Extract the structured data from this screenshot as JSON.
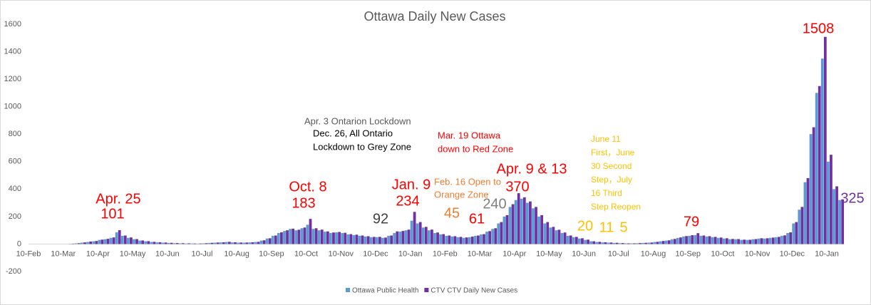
{
  "chart_data": {
    "type": "bar",
    "title": "Ottawa Daily New Cases",
    "categories": [
      "10-Feb",
      null,
      null,
      null,
      null,
      null,
      "10-Mar",
      null,
      null,
      null,
      null,
      null,
      "10-Apr",
      null,
      null,
      null,
      null,
      null,
      "10-May",
      null,
      null,
      null,
      null,
      null,
      "10-Jun",
      null,
      null,
      null,
      null,
      null,
      "10-Jul",
      null,
      null,
      null,
      null,
      null,
      "10-Aug",
      null,
      null,
      null,
      null,
      null,
      "10-Sep",
      null,
      null,
      null,
      null,
      null,
      "10-Oct",
      null,
      null,
      null,
      null,
      null,
      "10-Nov",
      null,
      null,
      null,
      null,
      null,
      "10-Dec",
      null,
      null,
      null,
      null,
      null,
      "10-Jan",
      null,
      null,
      null,
      null,
      null,
      "10-Feb",
      null,
      null,
      null,
      null,
      null,
      "10-Mar",
      null,
      null,
      null,
      null,
      null,
      "10-Apr",
      null,
      null,
      null,
      null,
      null,
      "10-May",
      null,
      null,
      null,
      null,
      null,
      "10-Jun",
      null,
      null,
      null,
      null,
      null,
      "10-Jul",
      null,
      null,
      null,
      null,
      null,
      "10-Aug",
      null,
      null,
      null,
      null,
      null,
      "10-Sep",
      null,
      null,
      null,
      null,
      null,
      "10-Oct",
      null,
      null,
      null,
      null,
      null,
      "10-Nov",
      null,
      null,
      null,
      null,
      null,
      "10-Dec",
      null,
      null,
      null,
      null,
      null,
      "10-Jan",
      null,
      null
    ],
    "series": [
      {
        "name": "Ottawa Public Health",
        "color": "#5b9bd5",
        "values": [
          0,
          0,
          0,
          0,
          0,
          0,
          0,
          2,
          5,
          10,
          15,
          20,
          30,
          35,
          45,
          85,
          60,
          45,
          35,
          25,
          20,
          15,
          12,
          10,
          8,
          6,
          5,
          4,
          4,
          3,
          5,
          8,
          10,
          12,
          15,
          12,
          10,
          10,
          12,
          15,
          25,
          40,
          60,
          80,
          95,
          110,
          100,
          115,
          140,
          110,
          100,
          90,
          80,
          85,
          80,
          70,
          65,
          60,
          55,
          50,
          50,
          45,
          60,
          80,
          90,
          100,
          170,
          150,
          120,
          100,
          80,
          70,
          60,
          55,
          50,
          45,
          50,
          60,
          70,
          90,
          110,
          150,
          200,
          270,
          320,
          330,
          300,
          260,
          200,
          150,
          120,
          100,
          80,
          60,
          50,
          40,
          30,
          20,
          15,
          12,
          10,
          8,
          6,
          5,
          5,
          6,
          8,
          10,
          15,
          20,
          25,
          35,
          45,
          55,
          60,
          65,
          60,
          55,
          50,
          45,
          40,
          35,
          35,
          30,
          30,
          35,
          40,
          40,
          45,
          50,
          60,
          80,
          150,
          250,
          450,
          800,
          1100,
          1350,
          600,
          400,
          320
        ]
      },
      {
        "name": "CTV CTV Daily New Cases",
        "color": "#7030a0",
        "values": [
          0,
          0,
          0,
          0,
          0,
          0,
          0,
          3,
          6,
          12,
          18,
          22,
          32,
          38,
          48,
          101,
          62,
          48,
          36,
          26,
          21,
          16,
          13,
          11,
          9,
          7,
          6,
          5,
          4,
          4,
          6,
          9,
          11,
          13,
          16,
          13,
          11,
          11,
          13,
          16,
          27,
          42,
          62,
          85,
          100,
          112,
          104,
          120,
          183,
          115,
          105,
          92,
          84,
          88,
          82,
          72,
          68,
          62,
          57,
          52,
          52,
          47,
          62,
          92,
          95,
          105,
          234,
          160,
          125,
          105,
          84,
          72,
          62,
          57,
          52,
          48,
          54,
          62,
          72,
          94,
          115,
          160,
          210,
          290,
          370,
          340,
          310,
          270,
          210,
          160,
          125,
          104,
          84,
          62,
          52,
          42,
          32,
          20,
          16,
          13,
          11,
          9,
          7,
          5,
          5,
          7,
          9,
          11,
          16,
          22,
          27,
          37,
          48,
          58,
          64,
          79,
          62,
          57,
          52,
          47,
          42,
          37,
          36,
          32,
          31,
          36,
          42,
          42,
          47,
          52,
          63,
          85,
          160,
          270,
          480,
          850,
          1150,
          1508,
          650,
          420,
          325
        ]
      }
    ],
    "ylim": [
      -200,
      1600
    ],
    "yticks": [
      -200,
      0,
      200,
      400,
      600,
      800,
      1000,
      1200,
      1400,
      1600
    ],
    "grid": false,
    "legend": "bottom",
    "annotations": [
      {
        "text": "Apr. 25",
        "color": "#ff0000"
      },
      {
        "text": "101",
        "color": "#ff0000"
      },
      {
        "text": "Oct. 8",
        "color": "#ff0000"
      },
      {
        "text": "183",
        "color": "#ff0000"
      },
      {
        "text": "92",
        "color": "#404040"
      },
      {
        "text": "Jan. 9",
        "color": "#ff0000"
      },
      {
        "text": "234",
        "color": "#ff0000"
      },
      {
        "text": "Apr. 3 Ontarion Lockdown",
        "color": "#595959"
      },
      {
        "text": "Dec. 26, All Ontario",
        "color": "#000000"
      },
      {
        "text": "Lockdown to Grey Zone",
        "color": "#000000"
      },
      {
        "text": "Mar. 19 Ottawa",
        "color": "#ff0000"
      },
      {
        "text": "down to Red Zone",
        "color": "#ff0000"
      },
      {
        "text": "Feb. 16 Open to",
        "color": "#ed7d31"
      },
      {
        "text": "Orange Zone",
        "color": "#ed7d31"
      },
      {
        "text": "45",
        "color": "#ed7d31"
      },
      {
        "text": "61",
        "color": "#ff0000"
      },
      {
        "text": "240",
        "color": "#7f7f7f"
      },
      {
        "text": "Apr. 9 & 13",
        "color": "#ff0000"
      },
      {
        "text": "370",
        "color": "#ff0000"
      },
      {
        "text": "June 11",
        "color": "#ffc000"
      },
      {
        "text": "First，June",
        "color": "#ffc000"
      },
      {
        "text": "30 Second",
        "color": "#ffc000"
      },
      {
        "text": "Step，July",
        "color": "#ffc000"
      },
      {
        "text": "16 Third",
        "color": "#ffc000"
      },
      {
        "text": "Step Reopen",
        "color": "#ffc000"
      },
      {
        "text": "20",
        "color": "#ffc000"
      },
      {
        "text": "11",
        "color": "#ffc000"
      },
      {
        "text": "5",
        "color": "#ffc000"
      },
      {
        "text": "79",
        "color": "#ff0000"
      },
      {
        "text": "1508",
        "color": "#ff0000"
      },
      {
        "text": "325",
        "color": "#7030a0"
      }
    ]
  }
}
